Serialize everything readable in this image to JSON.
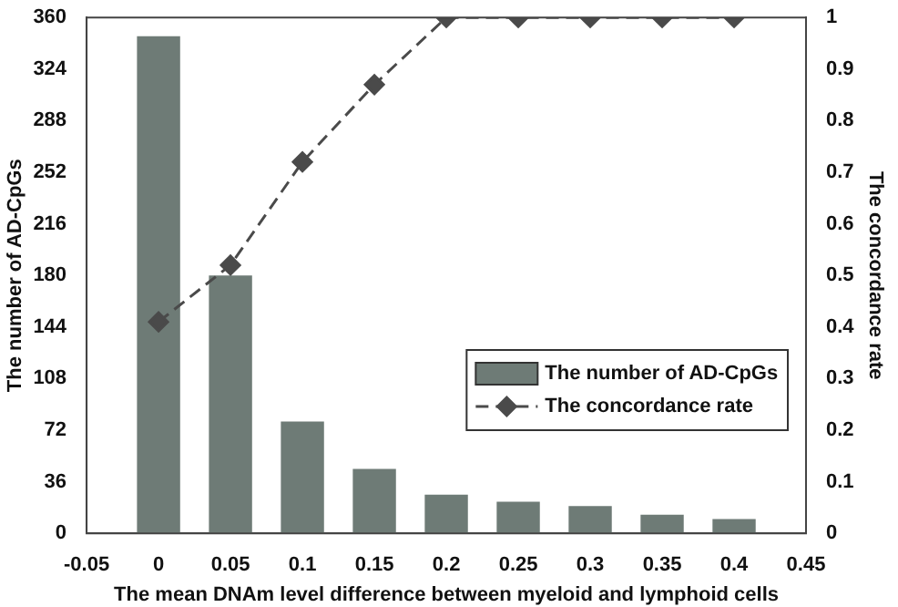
{
  "chart_data": {
    "type": "bar",
    "xlabel": "The mean DNAm level difference between myeloid and lymphoid cells",
    "ylabel": "The number of AD-CpGs",
    "y2label": "The concordance rate",
    "x": [
      0,
      0.05,
      0.1,
      0.15,
      0.2,
      0.25,
      0.3,
      0.35,
      0.4
    ],
    "series": [
      {
        "name": "The number of AD-CpGs",
        "color": "#6e7b76",
        "values": [
          347,
          180,
          78,
          45,
          27,
          22,
          19,
          13,
          10
        ]
      },
      {
        "name": "The concordance rate",
        "type": "line",
        "axis": "y2",
        "color": "#4a4a4a",
        "marker": "diamond",
        "line_style": "dashed",
        "values": [
          0.41,
          0.52,
          0.72,
          0.87,
          1,
          1,
          1,
          1,
          1
        ]
      }
    ],
    "xlim": [
      -0.05,
      0.45
    ],
    "xticks": [
      -0.05,
      0,
      0.05,
      0.1,
      0.15,
      0.2,
      0.25,
      0.3,
      0.35,
      0.4,
      0.45
    ],
    "ylim": [
      0,
      360
    ],
    "yticks": [
      0,
      36,
      72,
      108,
      144,
      180,
      216,
      252,
      288,
      324,
      360
    ],
    "y2lim": [
      0,
      1
    ],
    "y2ticks": [
      0,
      0.1,
      0.2,
      0.3,
      0.4,
      0.5,
      0.6,
      0.7,
      0.8,
      0.9,
      1
    ],
    "grid": false,
    "legend": "lower right"
  }
}
